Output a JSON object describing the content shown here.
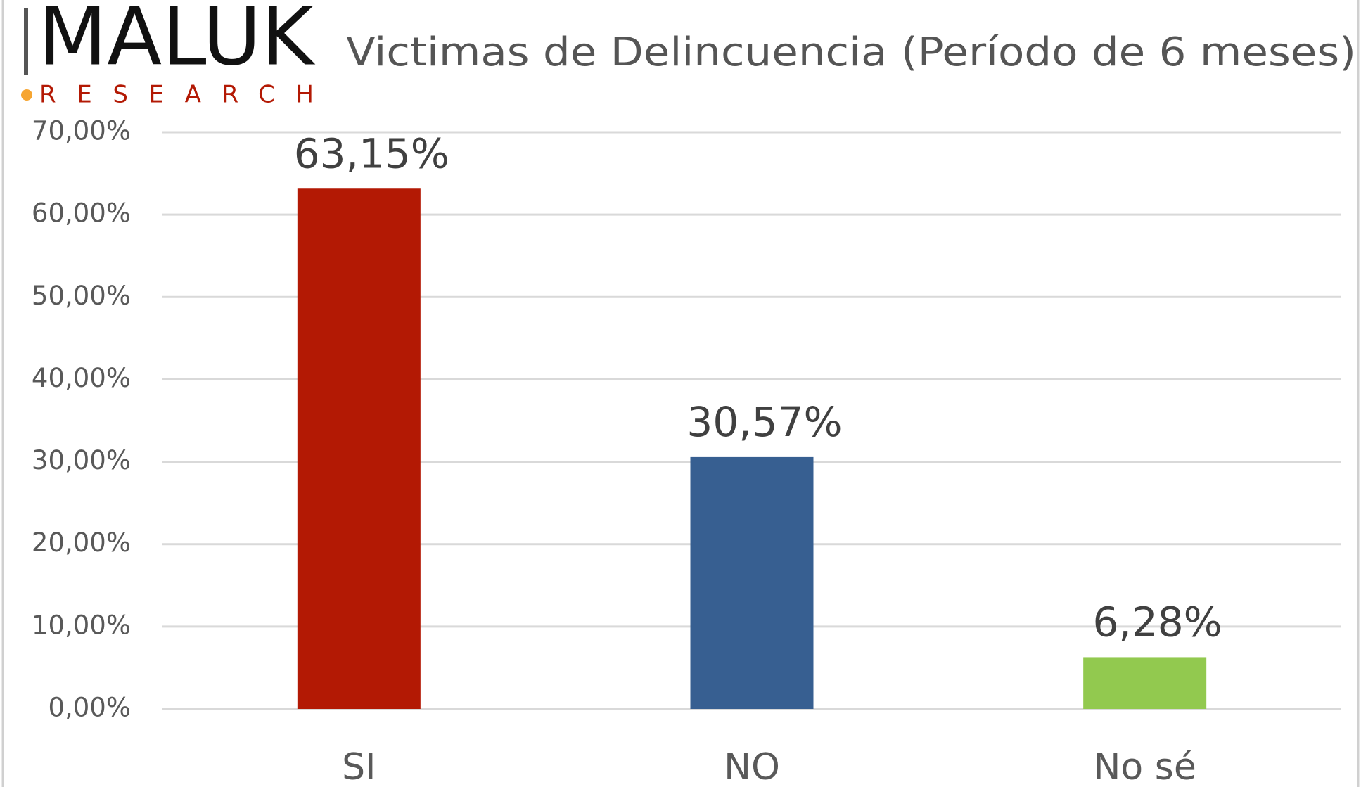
{
  "logo": {
    "name": "MALUK",
    "tagline": "RESEARCH"
  },
  "chart_data": {
    "type": "bar",
    "title": "Victimas de Delincuencia (Período de 6 meses)",
    "categories": [
      "SI",
      "NO",
      "No sé"
    ],
    "values": [
      63.15,
      30.57,
      6.28
    ],
    "value_labels": [
      "63,15%",
      "30,57%",
      "6,28%"
    ],
    "colors": [
      "#b31904",
      "#375f91",
      "#92c94f"
    ],
    "ylim": [
      0,
      70
    ],
    "yticks": [
      {
        "value": 0,
        "label": "0,00%"
      },
      {
        "value": 10,
        "label": "10,00%"
      },
      {
        "value": 20,
        "label": "20,00%"
      },
      {
        "value": 30,
        "label": "30,00%"
      },
      {
        "value": 40,
        "label": "40,00%"
      },
      {
        "value": 50,
        "label": "50,00%"
      },
      {
        "value": 60,
        "label": "60,00%"
      },
      {
        "value": 70,
        "label": "70,00%"
      }
    ],
    "grid": true
  }
}
